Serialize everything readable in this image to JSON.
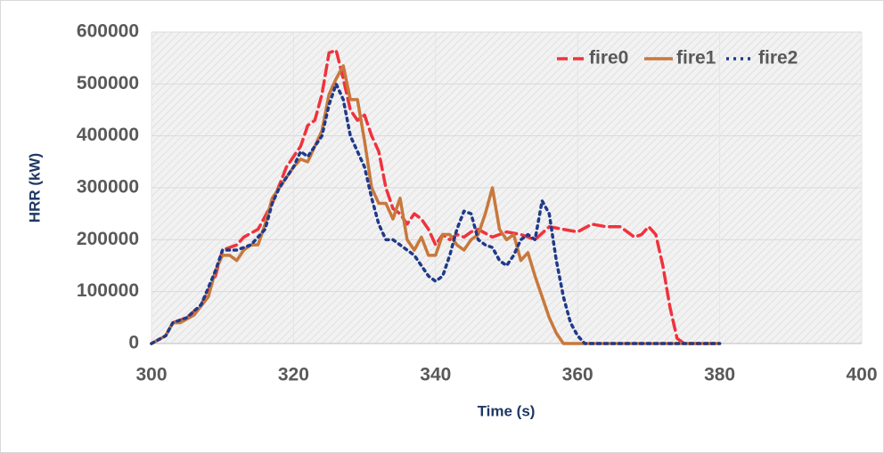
{
  "chart_data": {
    "type": "line",
    "x_label": "Time (s)",
    "y_label": "HRR (kW)",
    "xlim": [
      300,
      400
    ],
    "xticks": [
      300,
      320,
      340,
      360,
      380,
      400
    ],
    "ylim": [
      0,
      600000
    ],
    "yticks": [
      0,
      100000,
      200000,
      300000,
      400000,
      500000,
      600000
    ],
    "grid": true,
    "legend": "top-right",
    "series": [
      {
        "name": "fire0",
        "color": "#f0323c",
        "dash": "dashed",
        "x": [
          300,
          302,
          303,
          305,
          307,
          309,
          310,
          312,
          313,
          315,
          317,
          319,
          320,
          321,
          322,
          323,
          324,
          325,
          326,
          327,
          328,
          329,
          330,
          331,
          332,
          333,
          334,
          335,
          336,
          337,
          338,
          339,
          340,
          341,
          342,
          343,
          344,
          345,
          346,
          348,
          350,
          352,
          354,
          356,
          358,
          360,
          362,
          364,
          366,
          367,
          368,
          369,
          370,
          371,
          372,
          373,
          374,
          375,
          380
        ],
        "values": [
          0,
          15000,
          40000,
          50000,
          75000,
          130000,
          180000,
          190000,
          205000,
          220000,
          270000,
          340000,
          360000,
          380000,
          420000,
          430000,
          480000,
          560000,
          565000,
          510000,
          450000,
          430000,
          440000,
          400000,
          370000,
          300000,
          260000,
          250000,
          230000,
          250000,
          240000,
          220000,
          190000,
          210000,
          200000,
          210000,
          205000,
          215000,
          220000,
          205000,
          215000,
          210000,
          200000,
          225000,
          220000,
          215000,
          230000,
          225000,
          225000,
          215000,
          205000,
          210000,
          225000,
          210000,
          150000,
          70000,
          10000,
          0,
          0
        ]
      },
      {
        "name": "fire1",
        "color": "#c8783c",
        "dash": "solid",
        "x": [
          300,
          302,
          303,
          304,
          306,
          308,
          309,
          310,
          311,
          312,
          313,
          314,
          315,
          316,
          317,
          318,
          319,
          320,
          321,
          322,
          323,
          324,
          325,
          326,
          327,
          328,
          329,
          330,
          331,
          332,
          333,
          334,
          335,
          336,
          337,
          338,
          339,
          340,
          341,
          342,
          343,
          344,
          345,
          346,
          347,
          348,
          349,
          350,
          351,
          352,
          353,
          354,
          355,
          356,
          357,
          358,
          380
        ],
        "values": [
          0,
          15000,
          40000,
          40000,
          55000,
          90000,
          140000,
          170000,
          170000,
          160000,
          180000,
          190000,
          190000,
          230000,
          280000,
          300000,
          320000,
          340000,
          355000,
          350000,
          380000,
          410000,
          480000,
          510000,
          535000,
          470000,
          470000,
          390000,
          300000,
          270000,
          270000,
          240000,
          280000,
          200000,
          180000,
          205000,
          170000,
          170000,
          210000,
          210000,
          190000,
          180000,
          200000,
          210000,
          250000,
          300000,
          220000,
          200000,
          210000,
          160000,
          175000,
          130000,
          90000,
          50000,
          20000,
          0,
          0
        ]
      },
      {
        "name": "fire2",
        "color": "#1f3a8a",
        "dash": "dotted",
        "x": [
          300,
          302,
          303,
          305,
          307,
          309,
          310,
          312,
          314,
          316,
          317,
          318,
          320,
          321,
          322,
          323,
          324,
          325,
          326,
          327,
          328,
          329,
          330,
          331,
          332,
          333,
          334,
          335,
          336,
          337,
          338,
          339,
          340,
          341,
          342,
          343,
          344,
          345,
          346,
          347,
          348,
          349,
          350,
          351,
          352,
          353,
          354,
          355,
          356,
          357,
          358,
          359,
          360,
          361,
          380
        ],
        "values": [
          0,
          15000,
          40000,
          50000,
          75000,
          140000,
          180000,
          180000,
          190000,
          220000,
          270000,
          300000,
          340000,
          370000,
          360000,
          380000,
          400000,
          460000,
          500000,
          470000,
          400000,
          370000,
          340000,
          280000,
          230000,
          200000,
          200000,
          190000,
          180000,
          170000,
          150000,
          130000,
          120000,
          130000,
          170000,
          220000,
          255000,
          250000,
          200000,
          190000,
          185000,
          160000,
          150000,
          170000,
          200000,
          210000,
          200000,
          275000,
          250000,
          160000,
          90000,
          40000,
          15000,
          0,
          0
        ]
      }
    ]
  }
}
